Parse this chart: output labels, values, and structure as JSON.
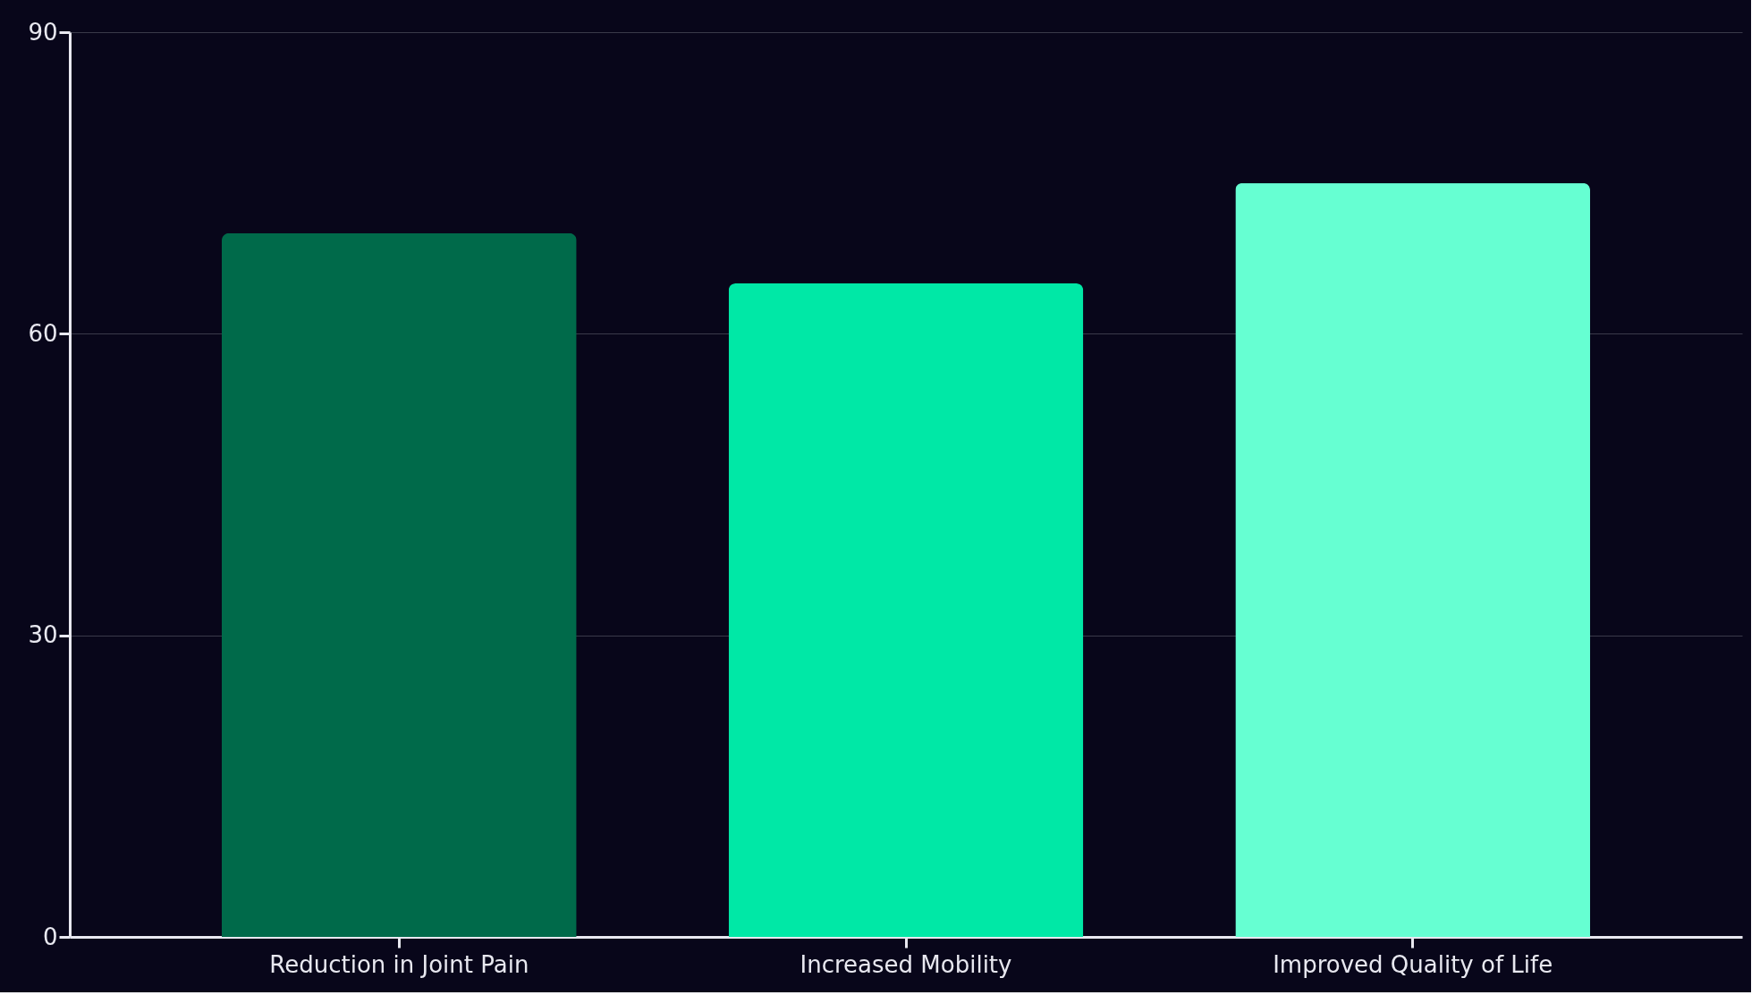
{
  "chart_data": {
    "type": "bar",
    "categories": [
      "Reduction in Joint Pain",
      "Increased Mobility",
      "Improved Quality of Life"
    ],
    "values": [
      70,
      65,
      75
    ],
    "colors": [
      "#006a4a",
      "#00e8a6",
      "#66ffd2"
    ],
    "ylim": [
      0,
      90
    ],
    "yticks": [
      0,
      30,
      60,
      90
    ],
    "grid": "y"
  }
}
